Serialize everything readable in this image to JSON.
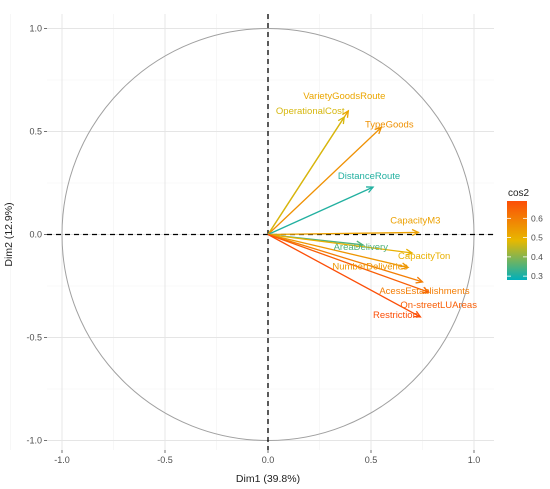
{
  "chart_data": {
    "type": "scatter",
    "subtype": "pca-variable-correlation-circle",
    "title": "",
    "xlabel": "Dim1 (39.8%)",
    "ylabel": "Dim2 (12.9%)",
    "xlim": [
      -1.0,
      1.0
    ],
    "ylim": [
      -1.0,
      1.0
    ],
    "x_ticks": [
      -1.0,
      -0.5,
      0.0,
      0.5,
      1.0
    ],
    "y_ticks": [
      -1.0,
      -0.5,
      0.0,
      0.5,
      1.0
    ],
    "x_tick_labels": [
      "-1.0",
      "-0.5",
      "0.0",
      "0.5",
      "1.0"
    ],
    "y_tick_labels": [
      "-1.0",
      "-0.5",
      "0.0",
      "0.5",
      "1.0"
    ],
    "grid": true,
    "legend": {
      "title": "cos2",
      "position": "right",
      "ticks": [
        0.3,
        0.4,
        0.5,
        0.6
      ],
      "tick_labels": [
        "0.3",
        "0.4",
        "0.5",
        "0.6"
      ],
      "range": [
        0.28,
        0.69
      ],
      "gradient_colors": [
        "#00AFBB",
        "#E7B800",
        "#FC4E07"
      ]
    },
    "variables": [
      {
        "label": "VarietyGoodsRoute",
        "x": 0.39,
        "y": 0.6,
        "cos2": 0.52
      },
      {
        "label": "OperationalCost",
        "x": 0.37,
        "y": 0.57,
        "cos2": 0.47
      },
      {
        "label": "TypeGoods",
        "x": 0.55,
        "y": 0.52,
        "cos2": 0.56
      },
      {
        "label": "DistanceRoute",
        "x": 0.51,
        "y": 0.23,
        "cos2": 0.31
      },
      {
        "label": "CapacityM3",
        "x": 0.73,
        "y": 0.01,
        "cos2": 0.53
      },
      {
        "label": "AreaDelivery",
        "x": 0.46,
        "y": -0.05,
        "cos2": 0.35
      },
      {
        "label": "CapacityTon",
        "x": 0.7,
        "y": -0.09,
        "cos2": 0.5
      },
      {
        "label": "NumberDeliveries",
        "x": 0.68,
        "y": -0.16,
        "cos2": 0.55
      },
      {
        "label": "AcessEstablishments",
        "x": 0.75,
        "y": -0.23,
        "cos2": 0.6
      },
      {
        "label": "On-streetLUAreas",
        "x": 0.78,
        "y": -0.28,
        "cos2": 0.66
      },
      {
        "label": "Restriction",
        "x": 0.74,
        "y": -0.4,
        "cos2": 0.69
      }
    ]
  }
}
